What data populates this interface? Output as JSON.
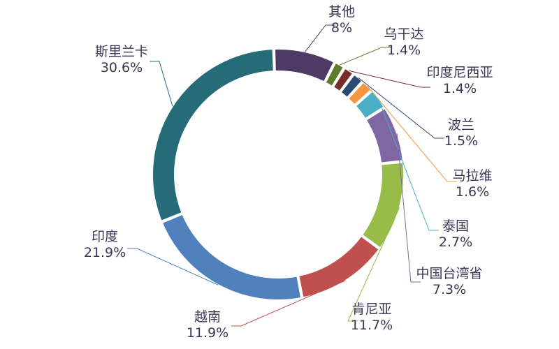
{
  "chart_data": {
    "type": "pie",
    "title": "",
    "slices": [
      {
        "label": "其他",
        "value_text": "8%",
        "value": 8.0,
        "color": "#4e3a64"
      },
      {
        "label": "乌干达",
        "value_text": "1.4%",
        "value": 1.4,
        "color": "#5e7a2d"
      },
      {
        "label": "印度尼西亚",
        "value_text": "1.4%",
        "value": 1.4,
        "color": "#7b2a2a"
      },
      {
        "label": "波兰",
        "value_text": "1.5%",
        "value": 1.5,
        "color": "#2b4a73"
      },
      {
        "label": "马拉维",
        "value_text": "1.6%",
        "value": 1.6,
        "color": "#f59540"
      },
      {
        "label": "泰国",
        "value_text": "2.7%",
        "value": 2.7,
        "color": "#4aaec7"
      },
      {
        "label": "中国台湾省",
        "value_text": "7.3%",
        "value": 7.3,
        "color": "#8066a3"
      },
      {
        "label": "肯尼亚",
        "value_text": "11.7%",
        "value": 11.7,
        "color": "#97bc48"
      },
      {
        "label": "越南",
        "value_text": "11.9%",
        "value": 11.9,
        "color": "#c0504d"
      },
      {
        "label": "印度",
        "value_text": "21.9%",
        "value": 21.9,
        "color": "#4f81bd"
      },
      {
        "label": "斯里兰卡",
        "value_text": "30.6%",
        "value": 30.6,
        "color": "#256b78"
      }
    ]
  }
}
